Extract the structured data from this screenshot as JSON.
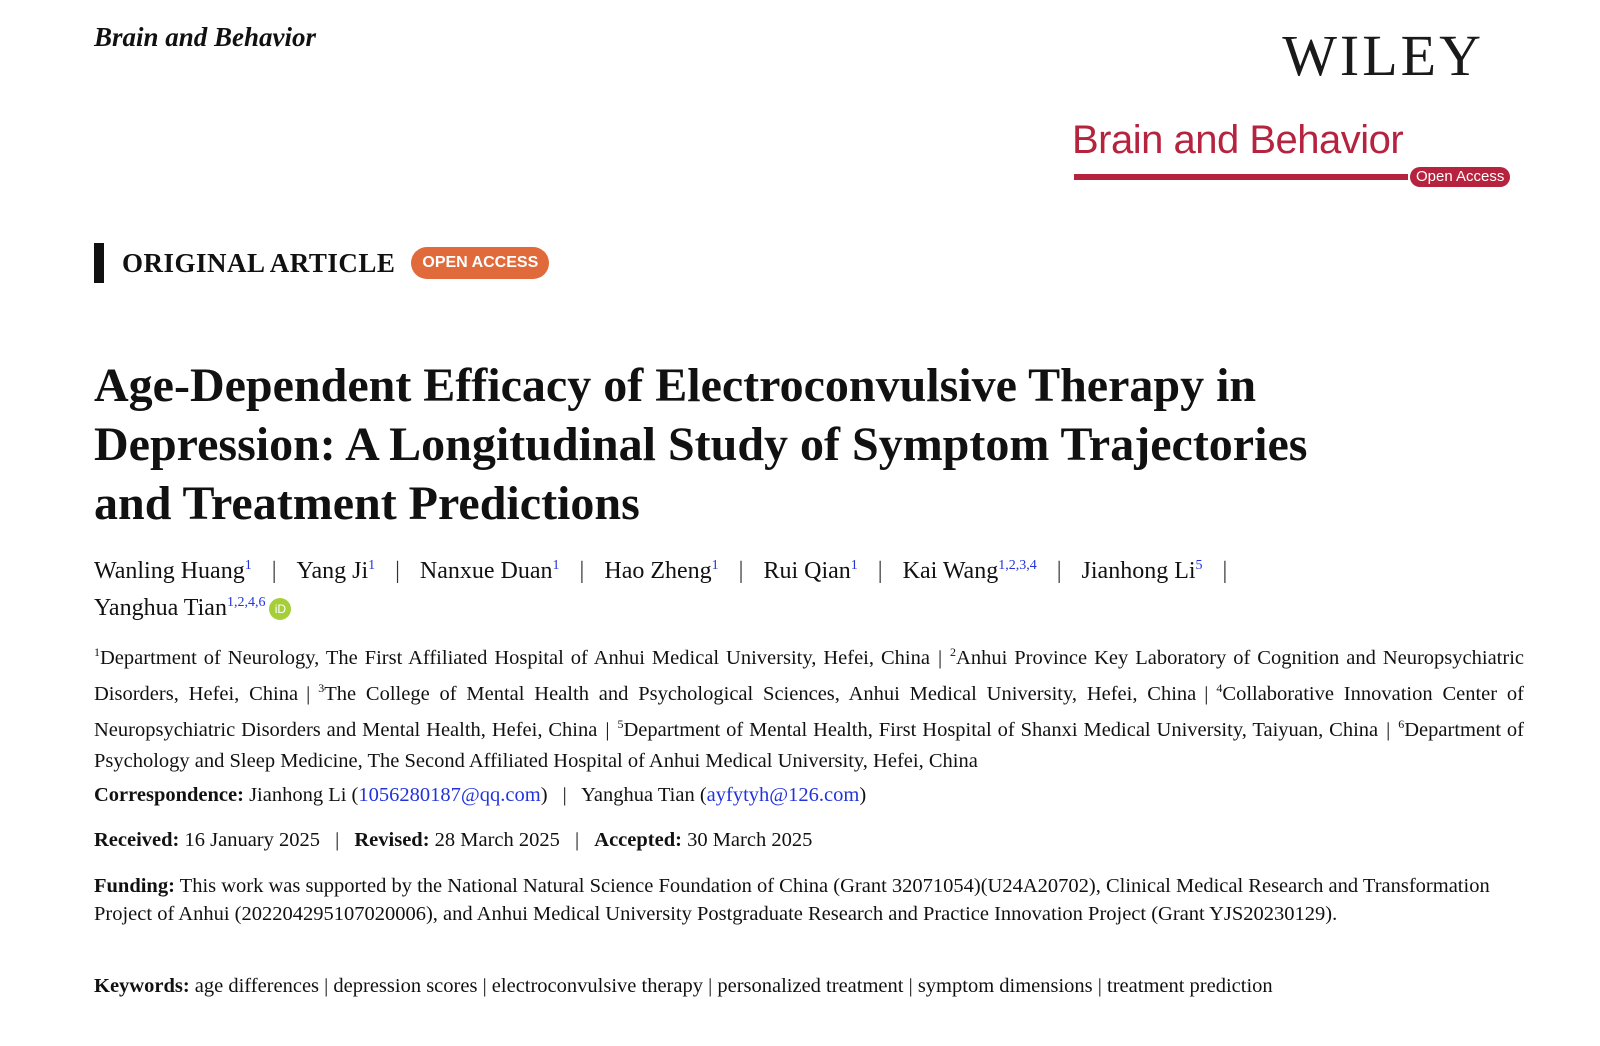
{
  "header": {
    "journal_name": "Brain and Behavior",
    "publisher": "WILEY",
    "logo_name": "Brain and Behavior",
    "logo_badge": "Open Access"
  },
  "article_type": {
    "label": "ORIGINAL ARTICLE",
    "badge": "OPEN ACCESS"
  },
  "title_lines": [
    "Age-Dependent Efficacy of Electroconvulsive Therapy in",
    "Depression: A Longitudinal Study of Symptom Trajectories",
    "and Treatment Predictions"
  ],
  "authors": [
    {
      "name": "Wanling Huang",
      "aff": "1"
    },
    {
      "name": "Yang Ji",
      "aff": "1"
    },
    {
      "name": "Nanxue Duan",
      "aff": "1"
    },
    {
      "name": "Hao Zheng",
      "aff": "1"
    },
    {
      "name": "Rui Qian",
      "aff": "1"
    },
    {
      "name": "Kai Wang",
      "aff": "1,2,3,4"
    },
    {
      "name": "Jianhong Li",
      "aff": "5"
    },
    {
      "name": "Yanghua Tian",
      "aff": "1,2,4,6",
      "orcid": "iD"
    }
  ],
  "separator": "|",
  "affiliations": [
    {
      "n": "1",
      "text": "Department of Neurology, The First Affiliated Hospital of Anhui Medical University, Hefei, China"
    },
    {
      "n": "2",
      "text": "Anhui Province Key Laboratory of Cognition and Neuropsychiatric Disorders, Hefei, China"
    },
    {
      "n": "3",
      "text": "The College of Mental Health and Psychological Sciences, Anhui Medical University, Hefei, China"
    },
    {
      "n": "4",
      "text": "Collaborative Innovation Center of Neuropsychiatric Disorders and Mental Health, Hefei, China"
    },
    {
      "n": "5",
      "text": "Department of Mental Health, First Hospital of Shanxi Medical University, Taiyuan, China"
    },
    {
      "n": "6",
      "text": "Department of Psychology and Sleep Medicine, The Second Affiliated Hospital of Anhui Medical University, Hefei, China"
    }
  ],
  "correspondence": {
    "label": "Correspondence:",
    "p1": "Jianhong Li (",
    "e1": "1056280187@qq.com",
    "p1end": ")",
    "p2": "Yanghua Tian (",
    "e2": "ayfytyh@126.com",
    "p2end": ")"
  },
  "dates": {
    "received_label": "Received:",
    "received": "16 January 2025",
    "revised_label": "Revised:",
    "revised": "28 March 2025",
    "accepted_label": "Accepted:",
    "accepted": "30 March 2025"
  },
  "funding": {
    "label": "Funding:",
    "text": "This work was supported by the National Natural Science Foundation of China (Grant 32071054)(U24A20702), Clinical Medical Research and Transformation Project of Anhui (202204295107020006), and Anhui Medical University Postgraduate Research and Practice Innovation Project (Grant YJS20230129)."
  },
  "keywords": {
    "label": "Keywords:",
    "items": [
      "age differences",
      "depression scores",
      "electroconvulsive therapy",
      "personalized treatment",
      "symptom dimensions",
      "treatment prediction"
    ]
  }
}
